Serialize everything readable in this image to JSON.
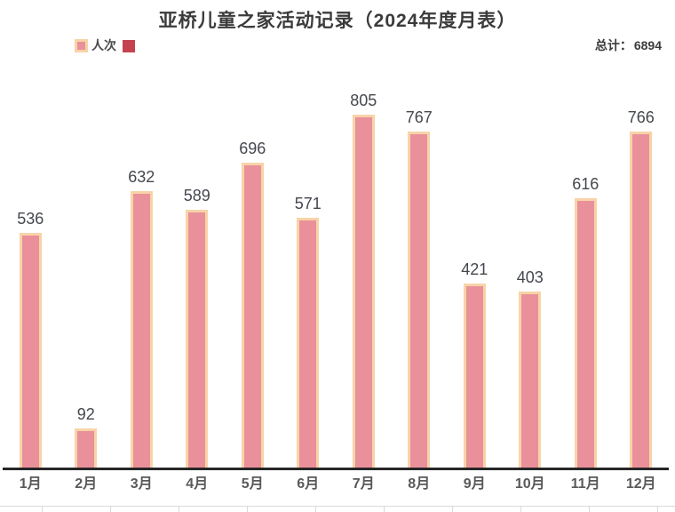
{
  "header": {
    "title": "亚桥儿童之家活动记录（2024年度月表）",
    "legend": {
      "series_label": "人次"
    },
    "total_label": "总计：",
    "total_value": "6894"
  },
  "chart_data": {
    "type": "bar",
    "title": "亚桥儿童之家活动记录（2024年度月表）",
    "categories": [
      "1月",
      "2月",
      "3月",
      "4月",
      "5月",
      "6月",
      "7月",
      "8月",
      "9月",
      "10月",
      "11月",
      "12月"
    ],
    "series": [
      {
        "name": "人次",
        "values": [
          536,
          92,
          632,
          589,
          696,
          571,
          805,
          767,
          421,
          403,
          616,
          766
        ]
      }
    ],
    "total": 6894,
    "xlabel": "",
    "ylabel": "",
    "data_labels_visible": true,
    "y_axis_visible": false,
    "grid": false,
    "legend_position": "top-left",
    "colors": {
      "bar_fill": "#e9909a",
      "bar_border": "#f8d3a8",
      "legend_red_square": "#c5434e",
      "axis_line": "#262626",
      "data_label": "#44474d",
      "category_label": "#595959",
      "title": "#3b3b3b"
    }
  }
}
